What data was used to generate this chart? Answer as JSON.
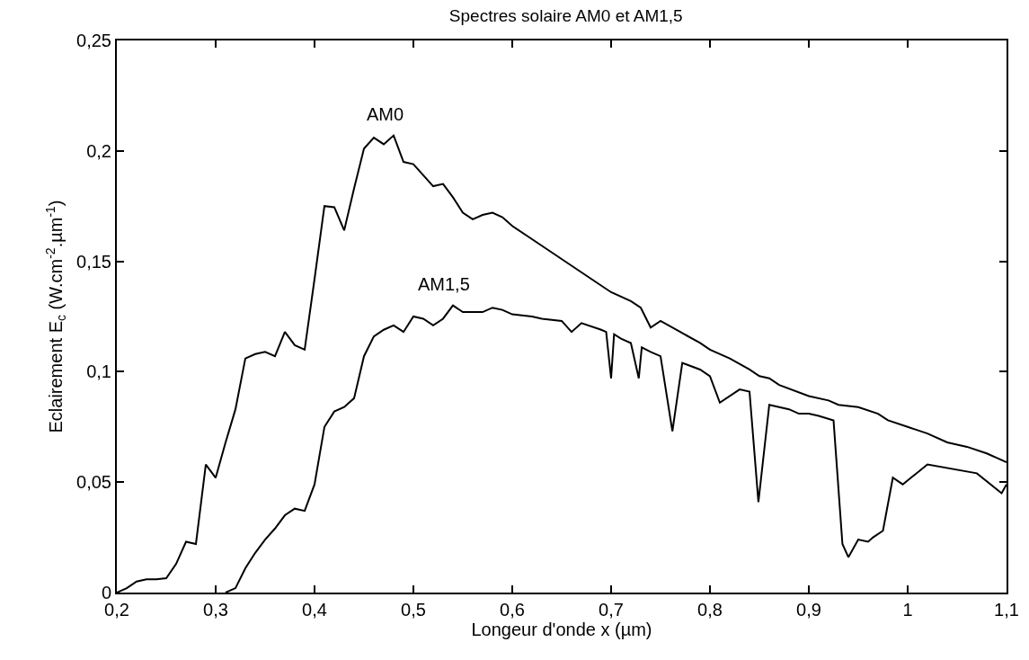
{
  "chart_data": {
    "type": "line",
    "title": "Spectres solaire AM0 et AM1,5",
    "xlabel": "Longeur d'onde x (µm)",
    "ylabel": "Eclairement E$_{c}$ (W.cm$^{-2}$.µm$^{-1}$)",
    "xlim": [
      0.2,
      1.1
    ],
    "ylim": [
      0,
      0.25
    ],
    "xticks": [
      {
        "value": 0.2,
        "label": "0,2"
      },
      {
        "value": 0.3,
        "label": "0,3"
      },
      {
        "value": 0.4,
        "label": "0,4"
      },
      {
        "value": 0.5,
        "label": "0,5"
      },
      {
        "value": 0.6,
        "label": "0,6"
      },
      {
        "value": 0.7,
        "label": "0,7"
      },
      {
        "value": 0.8,
        "label": "0,8"
      },
      {
        "value": 0.9,
        "label": "0,9"
      },
      {
        "value": 1.0,
        "label": "1"
      },
      {
        "value": 1.1,
        "label": "1,1"
      }
    ],
    "yticks": [
      0,
      {
        "value": 0.05,
        "label": "0,05"
      },
      {
        "value": 0.1,
        "label": "0,1"
      },
      {
        "value": 0.15,
        "label": "0,15"
      },
      {
        "value": 0.2,
        "label": "0,2"
      },
      {
        "value": 0.25,
        "label": "0,25"
      }
    ],
    "marker": "none",
    "line_style": "solid",
    "annotations": [
      "AM0",
      "AM1,5"
    ],
    "series": [
      {
        "color": "#000000",
        "x": [
          0.2,
          0.21,
          0.22,
          0.23,
          0.24,
          0.25,
          0.26,
          0.27,
          0.28,
          0.29,
          0.3,
          0.31,
          0.32,
          0.33,
          0.34,
          0.35,
          0.36,
          0.37,
          0.38,
          0.39,
          0.4,
          0.41,
          0.42,
          0.43,
          0.44,
          0.45,
          0.46,
          0.47,
          0.48,
          0.49,
          0.5,
          0.51,
          0.52,
          0.53,
          0.54,
          0.55,
          0.56,
          0.57,
          0.58,
          0.59,
          0.6,
          0.62,
          0.64,
          0.66,
          0.68,
          0.7,
          0.72,
          0.73,
          0.74,
          0.75,
          0.77,
          0.79,
          0.8,
          0.82,
          0.84,
          0.85,
          0.86,
          0.87,
          0.9,
          0.92,
          0.93,
          0.95,
          0.97,
          0.98,
          1.0,
          1.02,
          1.04,
          1.06,
          1.08,
          1.09,
          1.1
        ],
        "values": [
          0.0,
          0.002,
          0.005,
          0.006,
          0.006,
          0.0065,
          0.013,
          0.023,
          0.022,
          0.058,
          0.052,
          0.068,
          0.083,
          0.106,
          0.108,
          0.109,
          0.107,
          0.118,
          0.112,
          0.11,
          0.142,
          0.175,
          0.1745,
          0.164,
          0.183,
          0.201,
          0.206,
          0.203,
          0.207,
          0.195,
          0.194,
          0.189,
          0.184,
          0.185,
          0.179,
          0.172,
          0.169,
          0.171,
          0.172,
          0.17,
          0.166,
          0.16,
          0.154,
          0.148,
          0.142,
          0.136,
          0.132,
          0.129,
          0.12,
          0.123,
          0.118,
          0.113,
          0.11,
          0.106,
          0.101,
          0.098,
          0.097,
          0.094,
          0.089,
          0.087,
          0.085,
          0.084,
          0.081,
          0.078,
          0.075,
          0.072,
          0.068,
          0.066,
          0.063,
          0.061,
          0.059
        ]
      },
      {
        "color": "#000000",
        "x": [
          0.31,
          0.32,
          0.33,
          0.34,
          0.35,
          0.36,
          0.37,
          0.38,
          0.39,
          0.4,
          0.41,
          0.42,
          0.43,
          0.44,
          0.45,
          0.46,
          0.47,
          0.48,
          0.49,
          0.5,
          0.51,
          0.52,
          0.53,
          0.54,
          0.55,
          0.56,
          0.57,
          0.58,
          0.59,
          0.6,
          0.62,
          0.63,
          0.65,
          0.66,
          0.67,
          0.69,
          0.695,
          0.7,
          0.703,
          0.71,
          0.72,
          0.728,
          0.731,
          0.74,
          0.75,
          0.762,
          0.772,
          0.79,
          0.8,
          0.81,
          0.83,
          0.84,
          0.849,
          0.86,
          0.88,
          0.89,
          0.9,
          0.91,
          0.925,
          0.934,
          0.94,
          0.95,
          0.96,
          0.965,
          0.975,
          0.985,
          0.995,
          1.02,
          1.07,
          1.095,
          1.1
        ],
        "values": [
          0.0,
          0.002,
          0.011,
          0.018,
          0.024,
          0.029,
          0.035,
          0.038,
          0.037,
          0.049,
          0.075,
          0.082,
          0.084,
          0.088,
          0.107,
          0.116,
          0.119,
          0.121,
          0.118,
          0.125,
          0.124,
          0.121,
          0.124,
          0.13,
          0.127,
          0.127,
          0.127,
          0.129,
          0.128,
          0.126,
          0.125,
          0.124,
          0.123,
          0.118,
          0.122,
          0.119,
          0.118,
          0.097,
          0.117,
          0.115,
          0.113,
          0.097,
          0.111,
          0.109,
          0.107,
          0.073,
          0.104,
          0.101,
          0.098,
          0.086,
          0.092,
          0.091,
          0.041,
          0.085,
          0.083,
          0.081,
          0.081,
          0.08,
          0.078,
          0.022,
          0.016,
          0.024,
          0.023,
          0.025,
          0.028,
          0.052,
          0.049,
          0.058,
          0.054,
          0.045,
          0.049
        ]
      }
    ]
  }
}
